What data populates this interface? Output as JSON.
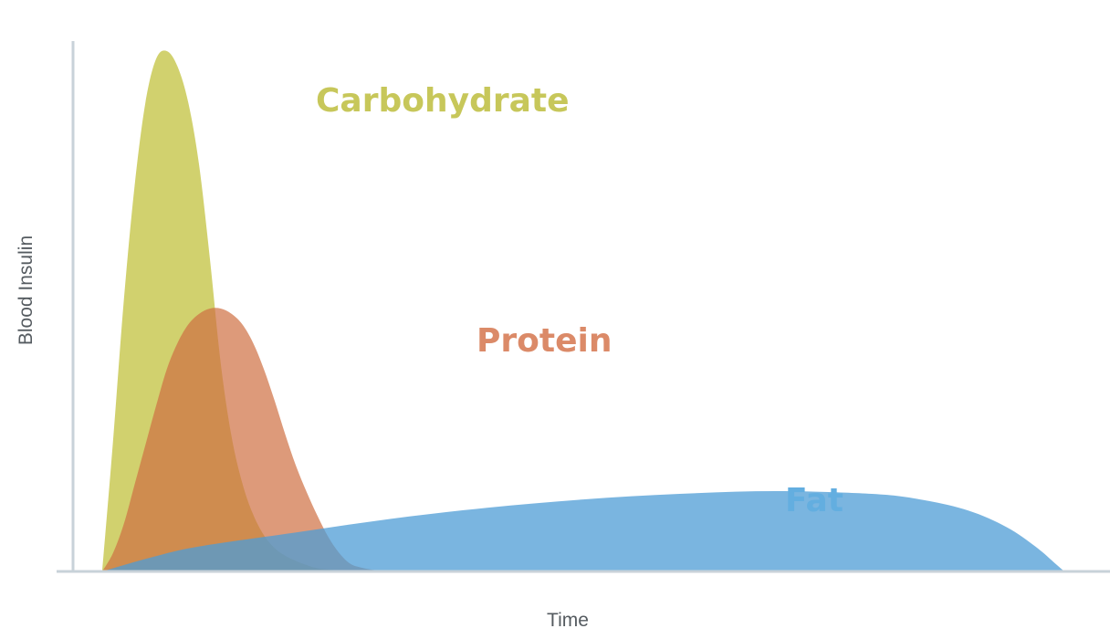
{
  "chart_data": {
    "type": "area",
    "title": "",
    "xlabel": "Time",
    "ylabel": "Blood Insulin",
    "x_tick_labels": [],
    "y_tick_labels": [],
    "xlim": [
      0,
      100
    ],
    "ylim": [
      0,
      100
    ],
    "grid": false,
    "legend": "inline labels",
    "series": [
      {
        "name": "Carbohydrate",
        "color": "#c2c23e",
        "opacity": 0.75,
        "x": [
          0,
          2,
          4,
          6,
          8,
          10,
          12,
          14,
          16,
          18,
          20,
          22,
          24,
          26,
          28,
          30,
          32,
          34,
          36,
          38,
          40,
          44,
          48,
          52,
          56,
          60,
          100
        ],
        "values": [
          0,
          25,
          52,
          74,
          90,
          98.5,
          100,
          97,
          90,
          78,
          60,
          40,
          26,
          17,
          11,
          7,
          4.5,
          3,
          2,
          1.2,
          0.6,
          0.2,
          0,
          0,
          0,
          0,
          0
        ]
      },
      {
        "name": "Protein",
        "color": "#cf6f41",
        "opacity": 0.7,
        "x": [
          0,
          2,
          4,
          6,
          8,
          10,
          12,
          14,
          16,
          18,
          20,
          22,
          24,
          26,
          28,
          30,
          32,
          34,
          36,
          38,
          40,
          42,
          44,
          46,
          48,
          50,
          52,
          56,
          100
        ],
        "values": [
          0,
          7,
          18,
          33,
          48,
          63,
          77,
          87,
          94,
          98,
          100,
          100,
          98,
          94,
          87,
          77,
          65,
          52,
          40,
          30,
          21,
          13,
          7,
          3,
          1.5,
          0.7,
          0.3,
          0,
          0
        ]
      },
      {
        "name": "Fat",
        "color": "#4d9cd6",
        "opacity": 0.75,
        "x": [
          0,
          5,
          10,
          20,
          30,
          40,
          50,
          60,
          70,
          80,
          85,
          90,
          94,
          97,
          99,
          100
        ],
        "values": [
          0,
          2.5,
          4.5,
          7,
          9.5,
          11.5,
          13,
          14,
          14.5,
          14,
          13,
          11,
          8,
          4.5,
          1.5,
          0
        ]
      }
    ]
  },
  "labels": {
    "carbohydrate": "Carbohydrate",
    "protein": "Protein",
    "fat": "Fat",
    "time": "Time",
    "blood_insulin": "Blood Insulin"
  },
  "colors": {
    "carbohydrate_text": "#c7c75a",
    "protein_text": "#db8a68",
    "fat_text": "#63aee0",
    "axis": "#c8d2d9"
  }
}
